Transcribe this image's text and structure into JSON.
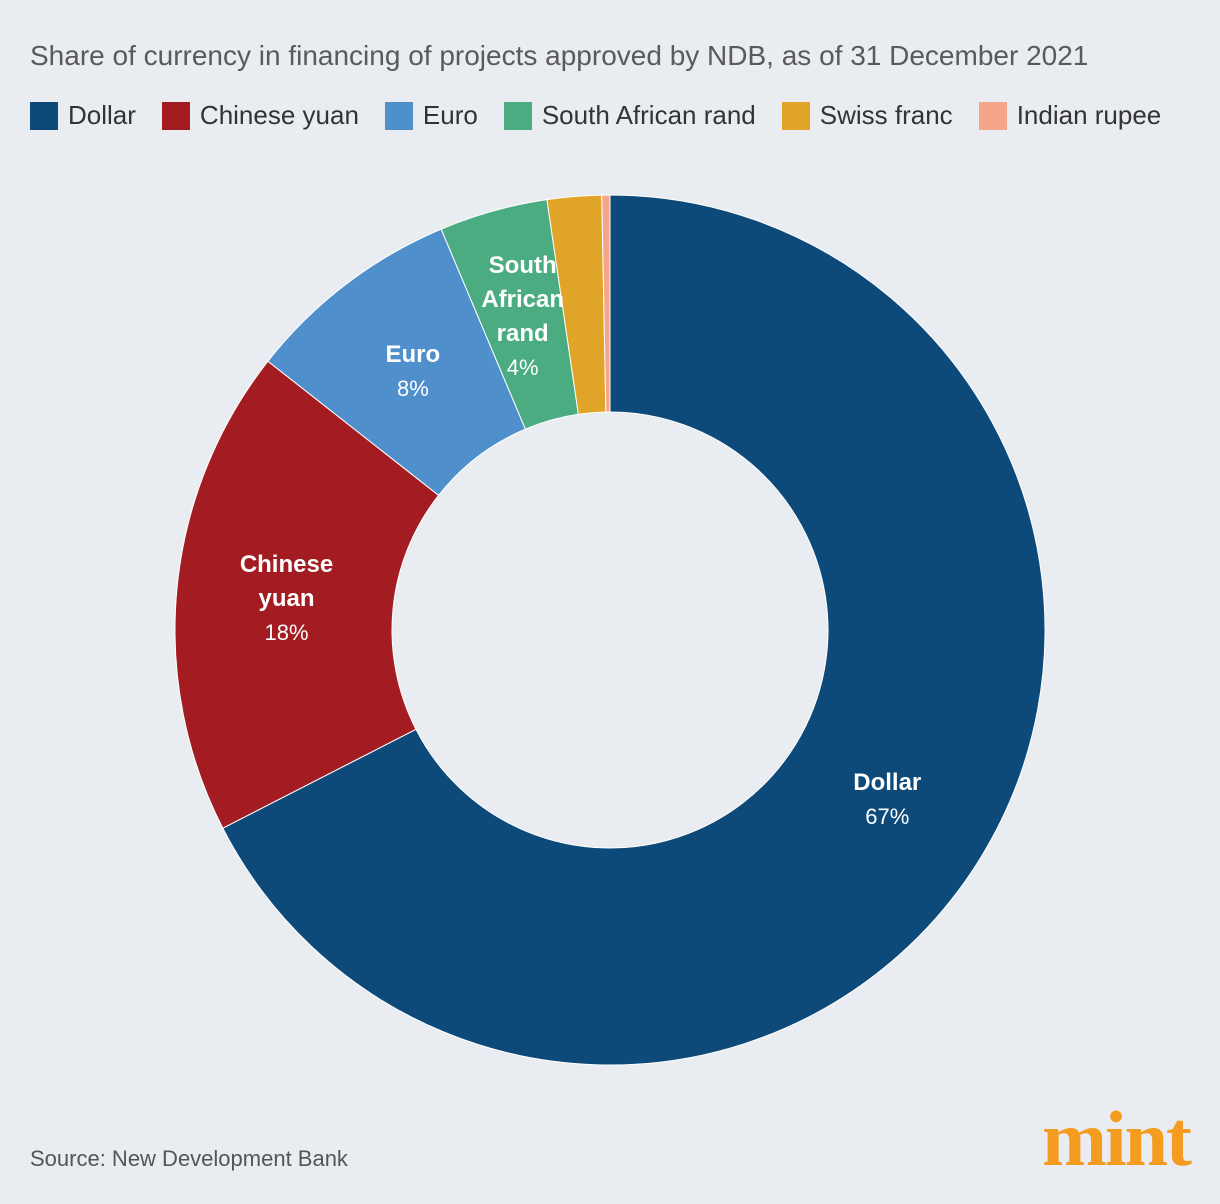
{
  "chart_data": {
    "type": "donut",
    "title": "Share of currency in financing of projects approved by NDB, as of 31 December 2021",
    "categories": [
      "Dollar",
      "Chinese yuan",
      "Euro",
      "South African rand",
      "Swiss franc",
      "Indian rupee"
    ],
    "values": [
      67,
      18,
      8,
      4,
      2,
      0.3
    ],
    "value_labels": [
      "67%",
      "18%",
      "8%",
      "4%",
      null,
      null
    ],
    "colors": [
      "#0d4a7a",
      "#a31c22",
      "#4f8fcc",
      "#4aac80",
      "#e0a428",
      "#f4a58a"
    ],
    "legend": "top",
    "source": "Source: New Development Bank",
    "logo": "mint"
  }
}
